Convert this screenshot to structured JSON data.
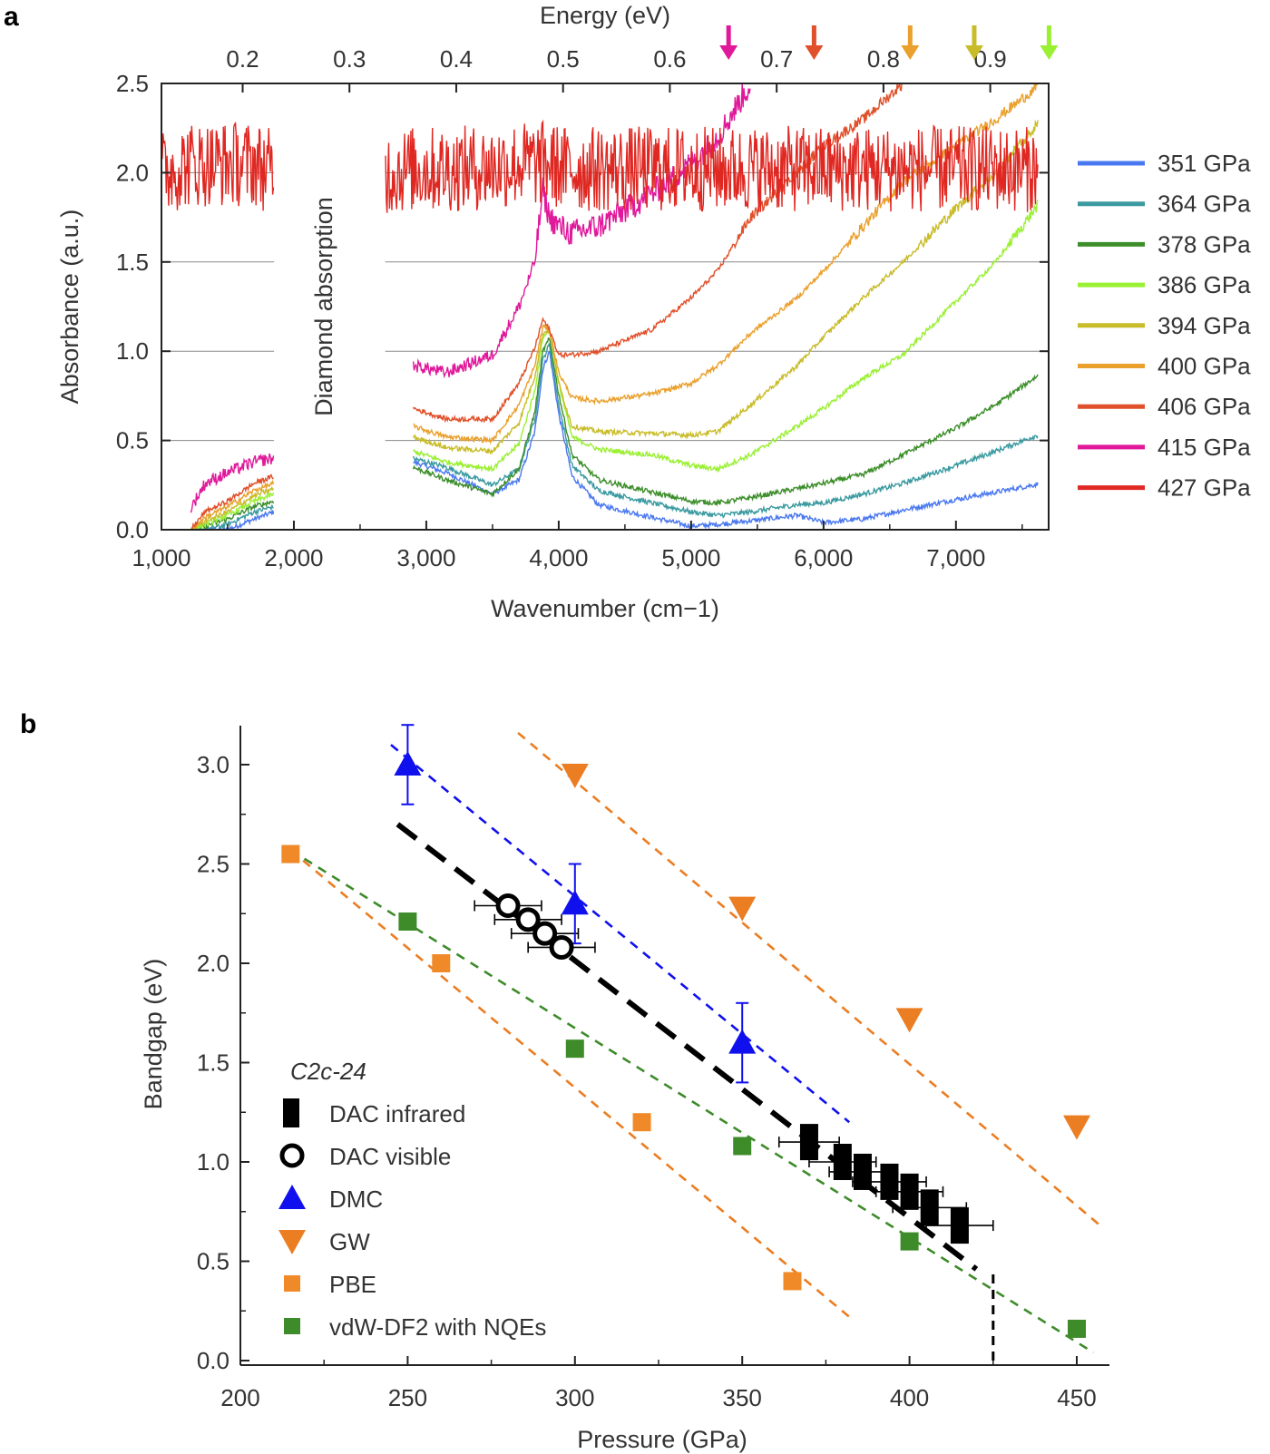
{
  "chart_data": [
    {
      "panel": "a",
      "type": "line",
      "xlabel": "Wavenumber (cm−1)",
      "x2label": "Energy (eV)",
      "ylabel": "Absorbance (a.u.)",
      "xlim": [
        1000,
        7700
      ],
      "ylim": [
        0,
        2.5
      ],
      "xticks": [
        1000,
        2000,
        3000,
        4000,
        5000,
        6000,
        7000
      ],
      "xtick_labels": [
        "1,000",
        "2,000",
        "3,000",
        "4,000",
        "5,000",
        "6,000",
        "7,000"
      ],
      "yticks": [
        0,
        0.5,
        1,
        1.5,
        2,
        2.5
      ],
      "ytick_labels": [
        "0.0",
        "0.5",
        "1.0",
        "1.5",
        "2.0",
        "2.5"
      ],
      "x2ticks": [
        0.2,
        0.3,
        0.4,
        0.5,
        0.6,
        0.7,
        0.8,
        0.9
      ],
      "x2tick_labels": [
        "0.2",
        "0.3",
        "0.4",
        "0.5",
        "0.6",
        "0.7",
        "0.8",
        "0.9"
      ],
      "grid_y": [
        0.5,
        1,
        1.5,
        2
      ],
      "gap": {
        "x_range": [
          1850,
          2690
        ],
        "annotation": "Diamond absorption"
      },
      "legend_position": "right",
      "arrows": [
        {
          "energy": 0.655,
          "color": "#e0189a"
        },
        {
          "energy": 0.735,
          "color": "#e0502a"
        },
        {
          "energy": 0.825,
          "color": "#eaa02c"
        },
        {
          "energy": 0.885,
          "color": "#c8bc28"
        },
        {
          "energy": 0.955,
          "color": "#9af032"
        }
      ],
      "series": [
        {
          "name": "351 GPa",
          "color": "#4a78f0",
          "x": [
            1000,
            1220,
            1330,
            1500,
            1700,
            1850,
            2690,
            2900,
            3150,
            3500,
            3700,
            3820,
            3880,
            3930,
            4000,
            4100,
            4300,
            4700,
            5000,
            5200,
            5450,
            5800,
            6000,
            6300,
            6600,
            7000,
            7300,
            7650
          ],
          "y": [
            null,
            0.0,
            0.0,
            0.0,
            0.06,
            0.1,
            null,
            0.38,
            0.32,
            0.2,
            0.28,
            0.55,
            0.9,
            1.0,
            0.65,
            0.3,
            0.14,
            0.07,
            0.02,
            0.03,
            0.05,
            0.08,
            0.04,
            0.06,
            0.11,
            0.17,
            0.21,
            0.26
          ]
        },
        {
          "name": "364 GPa",
          "color": "#3a9aa0",
          "x": [
            1000,
            1220,
            1330,
            1500,
            1700,
            1850,
            2690,
            2900,
            3150,
            3500,
            3700,
            3820,
            3880,
            3930,
            4000,
            4100,
            4300,
            4700,
            5000,
            5200,
            5450,
            5800,
            6000,
            6300,
            6600,
            7000,
            7300,
            7650
          ],
          "y": [
            null,
            0.0,
            0.0,
            0.03,
            0.1,
            0.13,
            null,
            0.4,
            0.35,
            0.25,
            0.34,
            0.62,
            0.95,
            1.04,
            0.7,
            0.36,
            0.22,
            0.15,
            0.1,
            0.08,
            0.1,
            0.14,
            0.15,
            0.2,
            0.26,
            0.36,
            0.44,
            0.54
          ]
        },
        {
          "name": "378 GPa",
          "color": "#3c8e2a",
          "x": [
            1000,
            1220,
            1330,
            1500,
            1700,
            1850,
            2690,
            2900,
            3150,
            3500,
            3700,
            3820,
            3880,
            3930,
            4000,
            4100,
            4300,
            4700,
            5000,
            5200,
            5450,
            5800,
            6000,
            6300,
            6600,
            7000,
            7300,
            7650
          ],
          "y": [
            null,
            0.0,
            0.02,
            0.06,
            0.13,
            0.16,
            null,
            0.35,
            0.28,
            0.2,
            0.34,
            0.66,
            1.0,
            1.07,
            0.76,
            0.42,
            0.28,
            0.21,
            0.16,
            0.15,
            0.18,
            0.23,
            0.26,
            0.31,
            0.42,
            0.57,
            0.7,
            0.88
          ]
        },
        {
          "name": "386 GPa",
          "color": "#9af032",
          "x": [
            1000,
            1220,
            1330,
            1500,
            1700,
            1850,
            2690,
            2900,
            3150,
            3500,
            3700,
            3820,
            3880,
            3930,
            4000,
            4100,
            4300,
            4700,
            5000,
            5200,
            5450,
            5800,
            6000,
            6300,
            6600,
            7000,
            7300,
            7650
          ],
          "y": [
            null,
            0.0,
            0.03,
            0.08,
            0.16,
            0.2,
            null,
            0.44,
            0.38,
            0.34,
            0.48,
            0.78,
            1.08,
            1.12,
            0.82,
            0.52,
            0.45,
            0.42,
            0.36,
            0.34,
            0.42,
            0.58,
            0.68,
            0.85,
            0.98,
            1.28,
            1.5,
            1.85
          ]
        },
        {
          "name": "394 GPa",
          "color": "#c8bc28",
          "x": [
            1000,
            1220,
            1330,
            1500,
            1700,
            1850,
            2690,
            2900,
            3150,
            3500,
            3700,
            3820,
            3880,
            3930,
            4000,
            4100,
            4300,
            4700,
            5000,
            5200,
            5450,
            5800,
            6000,
            6300,
            6600,
            7000,
            7300,
            7650
          ],
          "y": [
            null,
            0.0,
            0.05,
            0.1,
            0.19,
            0.23,
            null,
            0.52,
            0.46,
            0.44,
            0.6,
            0.86,
            1.1,
            1.12,
            0.82,
            0.58,
            0.55,
            0.54,
            0.53,
            0.55,
            0.7,
            0.92,
            1.08,
            1.3,
            1.5,
            1.8,
            2.0,
            2.3
          ]
        },
        {
          "name": "400 GPa",
          "color": "#eaa02c",
          "x": [
            1000,
            1220,
            1330,
            1500,
            1700,
            1850,
            2690,
            2900,
            3150,
            3500,
            3700,
            3820,
            3880,
            3930,
            4000,
            4100,
            4300,
            4700,
            5000,
            5200,
            5450,
            5800,
            6000,
            6300,
            6600,
            7000,
            7300,
            7650
          ],
          "y": [
            null,
            0.0,
            0.07,
            0.13,
            0.22,
            0.26,
            null,
            0.58,
            0.52,
            0.5,
            0.7,
            0.92,
            1.14,
            1.12,
            0.88,
            0.74,
            0.72,
            0.76,
            0.82,
            0.92,
            1.1,
            1.3,
            1.45,
            1.7,
            1.95,
            2.15,
            2.3,
            2.5
          ]
        },
        {
          "name": "406 GPa",
          "color": "#e0502a",
          "x": [
            1000,
            1220,
            1330,
            1500,
            1700,
            1850,
            2690,
            2900,
            3150,
            3500,
            3700,
            3820,
            3880,
            3930,
            4000,
            4100,
            4300,
            4700,
            5000,
            5200,
            5450,
            5800,
            6000,
            6300,
            6600,
            7000,
            7300,
            7650
          ],
          "y": [
            null,
            0.0,
            0.1,
            0.16,
            0.26,
            0.3,
            null,
            0.68,
            0.62,
            0.62,
            0.82,
            1.02,
            1.18,
            1.12,
            0.98,
            0.98,
            1.0,
            1.12,
            1.3,
            1.45,
            1.75,
            2.0,
            2.15,
            2.3,
            2.5,
            null,
            null,
            null
          ]
        },
        {
          "name": "415 GPa",
          "color": "#e0189a",
          "x": [
            1000,
            1220,
            1330,
            1500,
            1700,
            1850,
            2690,
            2900,
            3150,
            3500,
            3700,
            3820,
            3880,
            3930,
            4000,
            4100,
            4300,
            4700,
            5000,
            5200,
            5450,
            5800,
            6000,
            6300,
            6600,
            7000,
            7300,
            7650
          ],
          "y": [
            null,
            0.12,
            0.26,
            0.32,
            0.38,
            0.4,
            null,
            0.92,
            0.88,
            0.98,
            1.25,
            1.5,
            1.9,
            1.75,
            1.7,
            1.66,
            1.7,
            1.88,
            2.05,
            2.2,
            2.5,
            null,
            null,
            null,
            null,
            null,
            null,
            null
          ]
        },
        {
          "name": "427 GPa",
          "color": "#e02822",
          "x": [
            1000,
            1220,
            1330,
            1500,
            1700,
            1850,
            2690,
            2900,
            3150,
            3500,
            3700,
            3820,
            3880,
            3930,
            4000,
            4100,
            4300,
            4700,
            5000,
            5200,
            5450,
            5800,
            6000,
            6300,
            6600,
            7000,
            7300,
            7650
          ],
          "y": [
            2.0,
            2.05,
            2.05,
            2.05,
            2.05,
            2.0,
            2.0,
            2.02,
            2.02,
            2.03,
            2.05,
            2.05,
            2.05,
            2.05,
            2.03,
            2.02,
            2.02,
            2.02,
            2.02,
            2.02,
            2.02,
            2.02,
            2.02,
            2.02,
            2.02,
            2.02,
            2.02,
            2.02
          ]
        }
      ]
    },
    {
      "panel": "b",
      "type": "scatter",
      "xlabel": "Pressure (GPa)",
      "ylabel": "Bandgap (eV)",
      "xlim": [
        200,
        460
      ],
      "ylim": [
        0,
        3.2
      ],
      "xticks": [
        200,
        250,
        300,
        350,
        400,
        450
      ],
      "xtick_labels": [
        "200",
        "250",
        "300",
        "350",
        "400",
        "450"
      ],
      "yticks": [
        0,
        0.5,
        1,
        1.5,
        2,
        2.5,
        3
      ],
      "ytick_labels": [
        "0.0",
        "0.5",
        "1.0",
        "1.5",
        "2.0",
        "2.5",
        "3.0"
      ],
      "legend_title": "C2c-24",
      "legend_position": "bottom-left",
      "series": [
        {
          "name": "DAC infrared",
          "marker": "rect",
          "color": "#000000",
          "x": [
            370,
            380,
            386,
            394,
            400,
            406,
            415
          ],
          "y": [
            1.1,
            1.0,
            0.95,
            0.9,
            0.85,
            0.77,
            0.68
          ],
          "xerr": [
            9,
            10,
            10,
            11,
            10,
            11,
            10
          ]
        },
        {
          "name": "DAC visible",
          "marker": "open-circle",
          "color": "#000000",
          "x": [
            280,
            286,
            291,
            296
          ],
          "y": [
            2.29,
            2.22,
            2.15,
            2.08
          ],
          "xerr": [
            10,
            10,
            10,
            10
          ]
        },
        {
          "name": "DMC",
          "marker": "triangle-up",
          "color": "#1010ee",
          "x": [
            250,
            300,
            350
          ],
          "y": [
            3.0,
            2.3,
            1.6
          ],
          "yerr": [
            0.2,
            0.2,
            0.2
          ]
        },
        {
          "name": "GW",
          "marker": "triangle-down",
          "color": "#eb7d22",
          "x": [
            300,
            350,
            400,
            450
          ],
          "y": [
            2.95,
            2.28,
            1.72,
            1.18
          ]
        },
        {
          "name": "PBE",
          "marker": "square",
          "color": "#f08a28",
          "x": [
            215,
            260,
            320,
            365
          ],
          "y": [
            2.55,
            2.0,
            1.2,
            0.4
          ]
        },
        {
          "name": "vdW-DF2 with NQEs",
          "marker": "square",
          "color": "#3e8b2a",
          "x": [
            250,
            300,
            350,
            400,
            450
          ],
          "y": [
            2.21,
            1.57,
            1.08,
            0.6,
            0.16
          ]
        }
      ],
      "fit_lines": [
        {
          "color": "#1010ee",
          "x": [
            245,
            382
          ],
          "y": [
            3.1,
            1.2
          ]
        },
        {
          "color": "#eb7d22",
          "x": [
            283,
            457
          ],
          "y": [
            3.16,
            0.68
          ]
        },
        {
          "color": "#eb7d22",
          "x": [
            215,
            382
          ],
          "y": [
            2.57,
            0.22
          ]
        },
        {
          "color": "#3e8b2a",
          "x": [
            215,
            455
          ],
          "y": [
            2.57,
            0.04
          ]
        },
        {
          "color": "#000000",
          "x": [
            247,
            420
          ],
          "y": [
            2.7,
            0.46
          ],
          "style": "black-dashed"
        }
      ],
      "vertical_line": {
        "x": 425,
        "y": [
          0,
          0.46
        ]
      }
    }
  ]
}
